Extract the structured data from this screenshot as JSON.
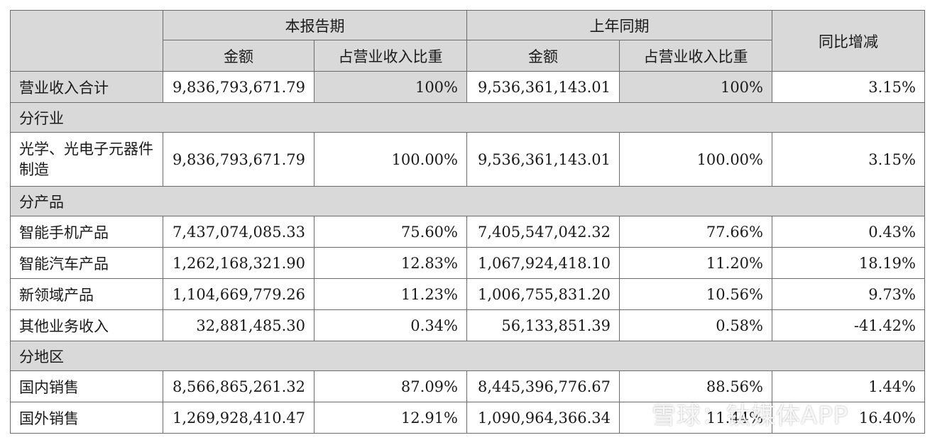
{
  "header": {
    "current_period": "本报告期",
    "prior_period": "上年同期",
    "yoy": "同比增减",
    "amount": "金额",
    "share": "占营业收入比重"
  },
  "total": {
    "label": "营业收入合计",
    "cur_amount": "9,836,793,671.79",
    "cur_share": "100%",
    "prev_amount": "9,536,361,143.01",
    "prev_share": "100%",
    "yoy": "3.15%"
  },
  "sections": {
    "industry": "分行业",
    "product": "分产品",
    "region": "分地区"
  },
  "industry_rows": [
    {
      "label": "光学、光电子元器件制造",
      "cur_amount": "9,836,793,671.79",
      "cur_share": "100.00%",
      "prev_amount": "9,536,361,143.01",
      "prev_share": "100.00%",
      "yoy": "3.15%"
    }
  ],
  "product_rows": [
    {
      "label": "智能手机产品",
      "cur_amount": "7,437,074,085.33",
      "cur_share": "75.60%",
      "prev_amount": "7,405,547,042.32",
      "prev_share": "77.66%",
      "yoy": "0.43%"
    },
    {
      "label": "智能汽车产品",
      "cur_amount": "1,262,168,321.90",
      "cur_share": "12.83%",
      "prev_amount": "1,067,924,418.10",
      "prev_share": "11.20%",
      "yoy": "18.19%"
    },
    {
      "label": "新领域产品",
      "cur_amount": "1,104,669,779.26",
      "cur_share": "11.23%",
      "prev_amount": "1,006,755,831.20",
      "prev_share": "10.56%",
      "yoy": "9.73%"
    },
    {
      "label": "其他业务收入",
      "cur_amount": "32,881,485.30",
      "cur_share": "0.34%",
      "prev_amount": "56,133,851.39",
      "prev_share": "0.58%",
      "yoy": "-41.42%"
    }
  ],
  "region_rows": [
    {
      "label": "国内销售",
      "cur_amount": "8,566,865,261.32",
      "cur_share": "87.09%",
      "prev_amount": "8,445,396,776.67",
      "prev_share": "88.56%",
      "yoy": "1.44%"
    },
    {
      "label": "国外销售",
      "cur_amount": "1,269,928,410.47",
      "cur_share": "12.91%",
      "prev_amount": "1,090,964,366.34",
      "prev_share": "11.44%",
      "yoy": "16.40%"
    }
  ],
  "watermark": "雪球：钛媒体APP"
}
